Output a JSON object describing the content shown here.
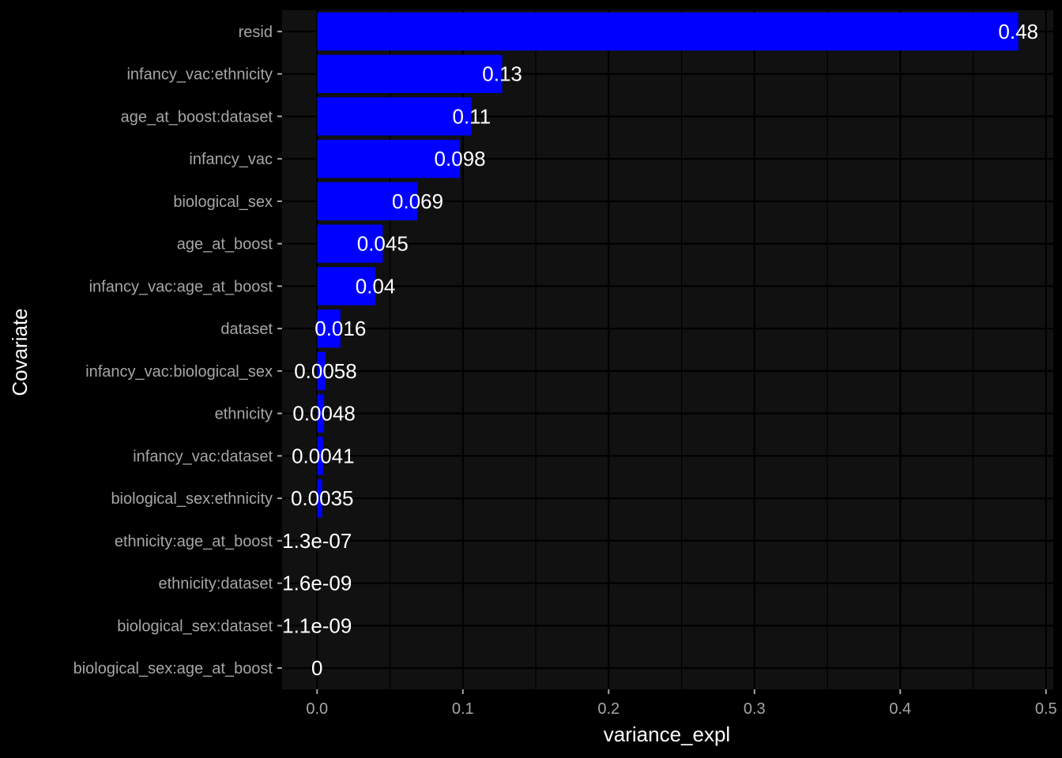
{
  "chart_data": {
    "type": "bar",
    "orientation": "horizontal",
    "title": "",
    "xlabel": "variance_expl",
    "ylabel": "Covariate",
    "xlim": [
      -0.024,
      0.505
    ],
    "x_ticks": [
      0.0,
      0.1,
      0.2,
      0.3,
      0.4,
      0.5
    ],
    "x_tick_labels": [
      "0.0",
      "0.1",
      "0.2",
      "0.3",
      "0.4",
      "0.5"
    ],
    "categories": [
      "resid",
      "infancy_vac:ethnicity",
      "age_at_boost:dataset",
      "infancy_vac",
      "biological_sex",
      "age_at_boost",
      "infancy_vac:age_at_boost",
      "dataset",
      "infancy_vac:biological_sex",
      "ethnicity",
      "infancy_vac:dataset",
      "biological_sex:ethnicity",
      "ethnicity:age_at_boost",
      "ethnicity:dataset",
      "biological_sex:dataset",
      "biological_sex:age_at_boost"
    ],
    "values": [
      0.481,
      0.127,
      0.106,
      0.098,
      0.069,
      0.045,
      0.04,
      0.016,
      0.0058,
      0.0048,
      0.0041,
      0.0035,
      1.3e-07,
      1.6e-09,
      1.1e-09,
      0
    ],
    "value_labels": [
      "0.48",
      "0.13",
      "0.11",
      "0.098",
      "0.069",
      "0.045",
      "0.04",
      "0.016",
      "0.0058",
      "0.0048",
      "0.0041",
      "0.0035",
      "1.3e-07",
      "1.6e-09",
      "1.1e-09",
      "0"
    ],
    "bar_color": "#0000ff",
    "panel_background": "#111111",
    "background": "#000000",
    "grid": true,
    "legend": "none"
  }
}
